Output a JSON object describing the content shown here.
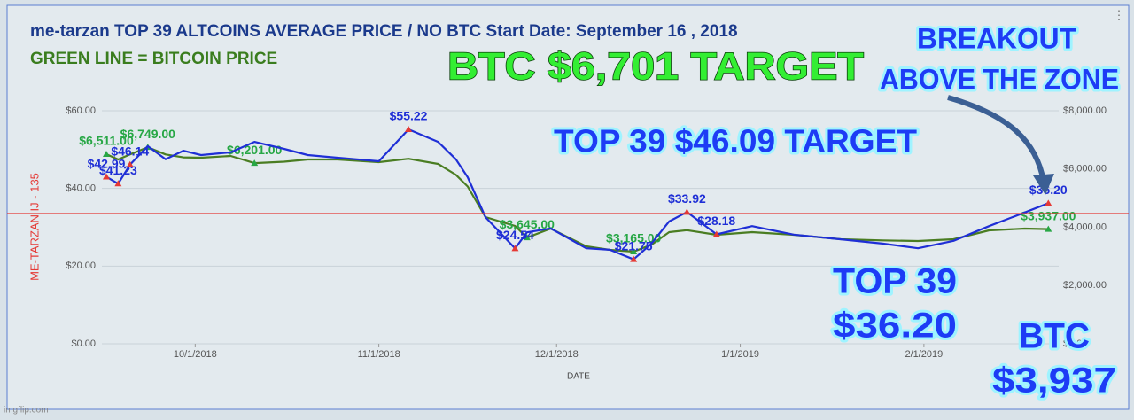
{
  "chart_data": {
    "type": "line",
    "title": "me-tarzan TOP 39 ALTCOINS AVERAGE PRICE / NO BTC  Start Date: September 16 , 2018",
    "subtitle": "GREEN LINE = BITCOIN PRICE",
    "x_label": "DATE",
    "y_label": "ME-TARZAN IJ - 135",
    "x": [
      "9/16/2018",
      "9/18/2018",
      "9/20/2018",
      "9/23/2018",
      "9/26/2018",
      "9/29/2018",
      "10/2/2018",
      "10/7/2018",
      "10/11/2018",
      "10/16/2018",
      "10/20/2018",
      "10/25/2018",
      "11/1/2018",
      "11/6/2018",
      "11/11/2018",
      "11/14/2018",
      "11/16/2018",
      "11/19/2018",
      "11/24/2018",
      "11/26/2018",
      "11/30/2018",
      "12/6/2018",
      "12/10/2018",
      "12/14/2018",
      "12/17/2018",
      "12/20/2018",
      "12/23/2018",
      "12/28/2018",
      "1/3/2019",
      "1/10/2019",
      "1/18/2019",
      "1/25/2019",
      "1/31/2019",
      "2/6/2019",
      "2/12/2019",
      "2/18/2019",
      "2/22/2019"
    ],
    "xlim": [
      "9/16/2018",
      "2/23/2019"
    ],
    "xticks": [
      "10/1/2018",
      "11/1/2018",
      "12/1/2018",
      "1/1/2019",
      "2/1/2019"
    ],
    "ylim": [
      0,
      60
    ],
    "yticks": [
      {
        "value": 0,
        "label": "$0.00"
      },
      {
        "value": 20,
        "label": "$20.00"
      },
      {
        "value": 40,
        "label": "$40.00"
      },
      {
        "value": 60,
        "label": "$60.00"
      }
    ],
    "y2lim": [
      0,
      8000
    ],
    "y2ticks": [
      {
        "value": 0,
        "label": "$0.00"
      },
      {
        "value": 2000,
        "label": "$2,000.00"
      },
      {
        "value": 4000,
        "label": "$4,000.00"
      },
      {
        "value": 6000,
        "label": "$6,000.00"
      },
      {
        "value": 8000,
        "label": "$8,000.00"
      }
    ],
    "grid": true,
    "hline": {
      "value": 33.5,
      "color": "#e53935"
    },
    "series": [
      {
        "color": "#1f2fd6",
        "marker_color": "#e53935",
        "values": [
          42.99,
          41.23,
          46.14,
          50.9,
          47.5,
          49.7,
          48.6,
          49.3,
          52.0,
          50.2,
          48.6,
          47.9,
          47.0,
          55.22,
          52,
          47.5,
          42.9,
          32.6,
          24.54,
          28.7,
          29.7,
          24.6,
          24.2,
          21.75,
          25.8,
          31.5,
          33.92,
          28.18,
          30.3,
          28.1,
          26.9,
          25.8,
          24.6,
          26.5,
          30.3,
          33.8,
          36.2
        ],
        "value_labels": [
          "$42.99",
          "$41.23",
          "$46.14",
          null,
          null,
          null,
          null,
          null,
          null,
          null,
          null,
          null,
          null,
          "$55.22",
          null,
          null,
          null,
          null,
          "$24.54",
          null,
          null,
          null,
          null,
          "$21.75",
          null,
          null,
          "$33.92",
          "$28.18",
          null,
          null,
          null,
          null,
          null,
          null,
          null,
          null,
          "$36.20"
        ]
      },
      {
        "color": "#4a7d22",
        "marker_color": "#27a745",
        "axis": "y2",
        "values": [
          6511,
          6327,
          6500,
          6749,
          6500,
          6400,
          6388,
          6450,
          6201,
          6250,
          6327,
          6327,
          6236,
          6350,
          6175,
          5800,
          5400,
          4350,
          4046,
          3645,
          3954,
          3346,
          3224,
          3165,
          3400,
          3833,
          3900,
          3741,
          3833,
          3741,
          3589,
          3550,
          3528,
          3589,
          3894,
          3954,
          3937
        ],
        "value_labels": [
          "$6,511.00",
          null,
          null,
          "$6,749.00",
          null,
          null,
          null,
          null,
          "$6,201.00",
          null,
          null,
          null,
          null,
          null,
          null,
          null,
          null,
          null,
          null,
          "$3,645.00",
          null,
          null,
          null,
          "$3,165.00",
          null,
          null,
          null,
          null,
          null,
          null,
          null,
          null,
          null,
          null,
          null,
          null,
          "$3,937.00"
        ]
      }
    ]
  },
  "overlays": {
    "btc_target": "BTC  $6,701 TARGET",
    "breakout": [
      "BREAKOUT",
      "ABOVE THE ZONE"
    ],
    "top39_target": "TOP 39 $46.09 TARGET",
    "top39_now": [
      "TOP 39",
      "$36.20"
    ],
    "btc_now": [
      "BTC",
      "$3,937"
    ]
  },
  "watermark": "imgflip.com"
}
